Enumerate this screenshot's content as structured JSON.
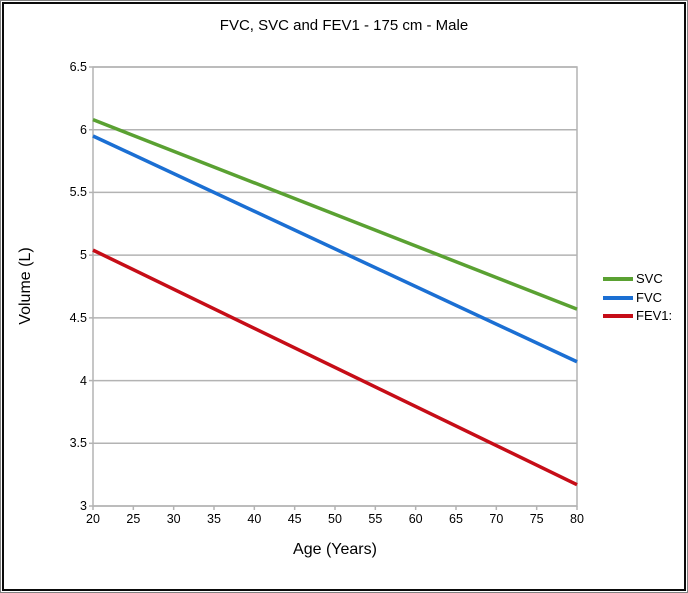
{
  "window": {
    "background": "#ffffff",
    "outer_border_color": "#808080",
    "inner_border_color": "#0a0a0a"
  },
  "chart_data": {
    "type": "line",
    "title": "FVC, SVC and FEV1 - 175 cm - Male",
    "xlabel": "Age (Years)",
    "ylabel": "Volume (L)",
    "xlim": [
      20,
      80
    ],
    "ylim": [
      3,
      6.5
    ],
    "x_ticks": [
      20,
      25,
      30,
      35,
      40,
      45,
      50,
      55,
      60,
      65,
      70,
      75,
      80
    ],
    "y_ticks": [
      3,
      3.5,
      4,
      4.5,
      5,
      5.5,
      6,
      6.5
    ],
    "grid": "horizontal-only",
    "gridline_color": "#b3b3b3",
    "axis_frame_color": "#b3b3b3",
    "text_color": "#000000",
    "legend_position": "right",
    "x": [
      20,
      80
    ],
    "series": [
      {
        "name": "SVC",
        "color": "#5aa132",
        "values": [
          6.08,
          4.57
        ]
      },
      {
        "name": "FVC",
        "color": "#1b6fd3",
        "values": [
          5.95,
          4.15
        ]
      },
      {
        "name": "FEV1:",
        "color": "#c60d17",
        "values": [
          5.04,
          3.17
        ]
      }
    ]
  }
}
